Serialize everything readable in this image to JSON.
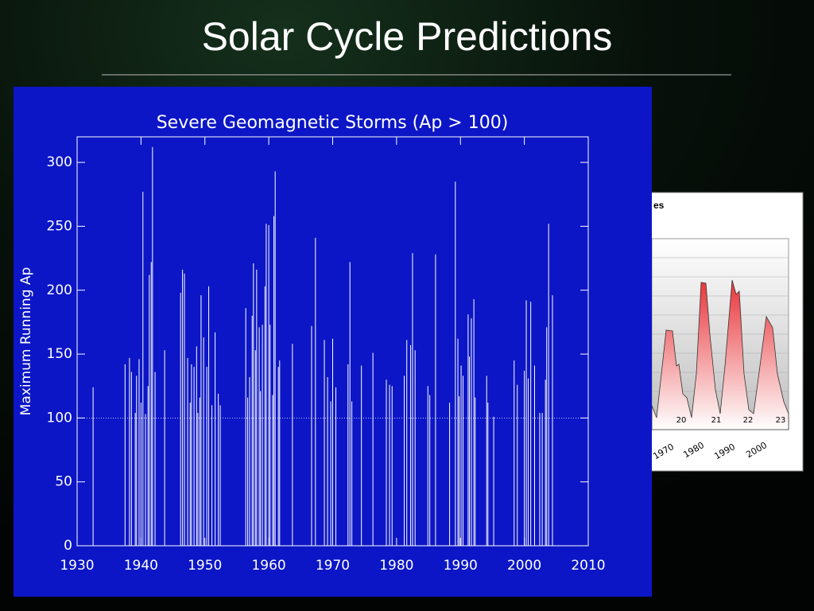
{
  "slide": {
    "title": "Solar Cycle Predictions"
  },
  "background_figure": {
    "title": "es",
    "cycle_labels": [
      "20",
      "21",
      "22",
      "23"
    ],
    "year_labels": [
      "1970",
      "1980",
      "1990",
      "2000"
    ]
  },
  "chart_data": {
    "type": "spike",
    "title": "Severe Geomagnetic Storms (Ap > 100)",
    "y_label": "Maximum Running Ap",
    "color": "#ffffff",
    "reference_line": 100,
    "xlim": [
      1930,
      2010
    ],
    "xticks": [
      1930,
      1940,
      1950,
      1960,
      1970,
      1980,
      1990,
      2000,
      2010
    ],
    "ylim": [
      0,
      320
    ],
    "yticks": [
      0,
      50,
      100,
      150,
      200,
      250,
      300
    ],
    "x": [
      1932.5,
      1937.5,
      1938.2,
      1938.5,
      1939.1,
      1939.3,
      1939.7,
      1940,
      1940.3,
      1940.7,
      1941.1,
      1941.3,
      1941.6,
      1941.8,
      1942.2,
      1943.7,
      1946.2,
      1946.5,
      1946.8,
      1947.3,
      1947.7,
      1947.9,
      1948.3,
      1948.7,
      1948.9,
      1949.2,
      1949.4,
      1949.8,
      1950.3,
      1950.6,
      1951.1,
      1951.6,
      1952.1,
      1952.4,
      1956.4,
      1956.7,
      1957,
      1957.4,
      1957.6,
      1957.9,
      1958.1,
      1958.5,
      1958.7,
      1959,
      1959.4,
      1959.6,
      1960,
      1960.2,
      1960.6,
      1960.8,
      1961,
      1961.5,
      1961.7,
      1963.7,
      1966.7,
      1967.3,
      1968.7,
      1969.2,
      1969.7,
      1970,
      1970.5,
      1972.4,
      1972.7,
      1973,
      1974.5,
      1976.3,
      1978.4,
      1978.9,
      1979.3,
      1981.2,
      1981.6,
      1982.2,
      1982.5,
      1982.9,
      1984.9,
      1985.2,
      1986.1,
      1988.3,
      1989.2,
      1989.6,
      1989.8,
      1990.1,
      1990.4,
      1991.2,
      1991.4,
      1991.7,
      1992.1,
      1992.3,
      1994.1,
      1994.3,
      1995.2,
      1998.4,
      1998.9,
      2000,
      2000.3,
      2000.6,
      2001,
      2001.6,
      2002.4,
      2002.8,
      2003.3,
      2003.5,
      2003.8,
      2004.4
    ],
    "values": [
      124,
      142,
      147,
      136,
      104,
      133,
      146,
      112,
      277,
      103,
      125,
      212,
      222,
      312,
      136,
      153,
      198,
      216,
      213,
      147,
      112,
      142,
      140,
      156,
      104,
      116,
      196,
      163,
      140,
      203,
      110,
      167,
      119,
      110,
      186,
      116,
      132,
      180,
      221,
      153,
      216,
      171,
      121,
      173,
      203,
      252,
      251,
      173,
      118,
      258,
      293,
      140,
      145,
      158,
      172,
      241,
      161,
      132,
      113,
      162,
      124,
      142,
      222,
      113,
      141,
      151,
      130,
      126,
      125,
      133,
      161,
      157,
      229,
      153,
      125,
      118,
      228,
      112,
      285,
      162,
      117,
      141,
      133,
      181,
      148,
      178,
      193,
      116,
      133,
      112,
      101,
      145,
      126,
      137,
      192,
      131,
      191,
      141,
      104,
      104,
      130,
      171,
      252,
      196
    ]
  }
}
